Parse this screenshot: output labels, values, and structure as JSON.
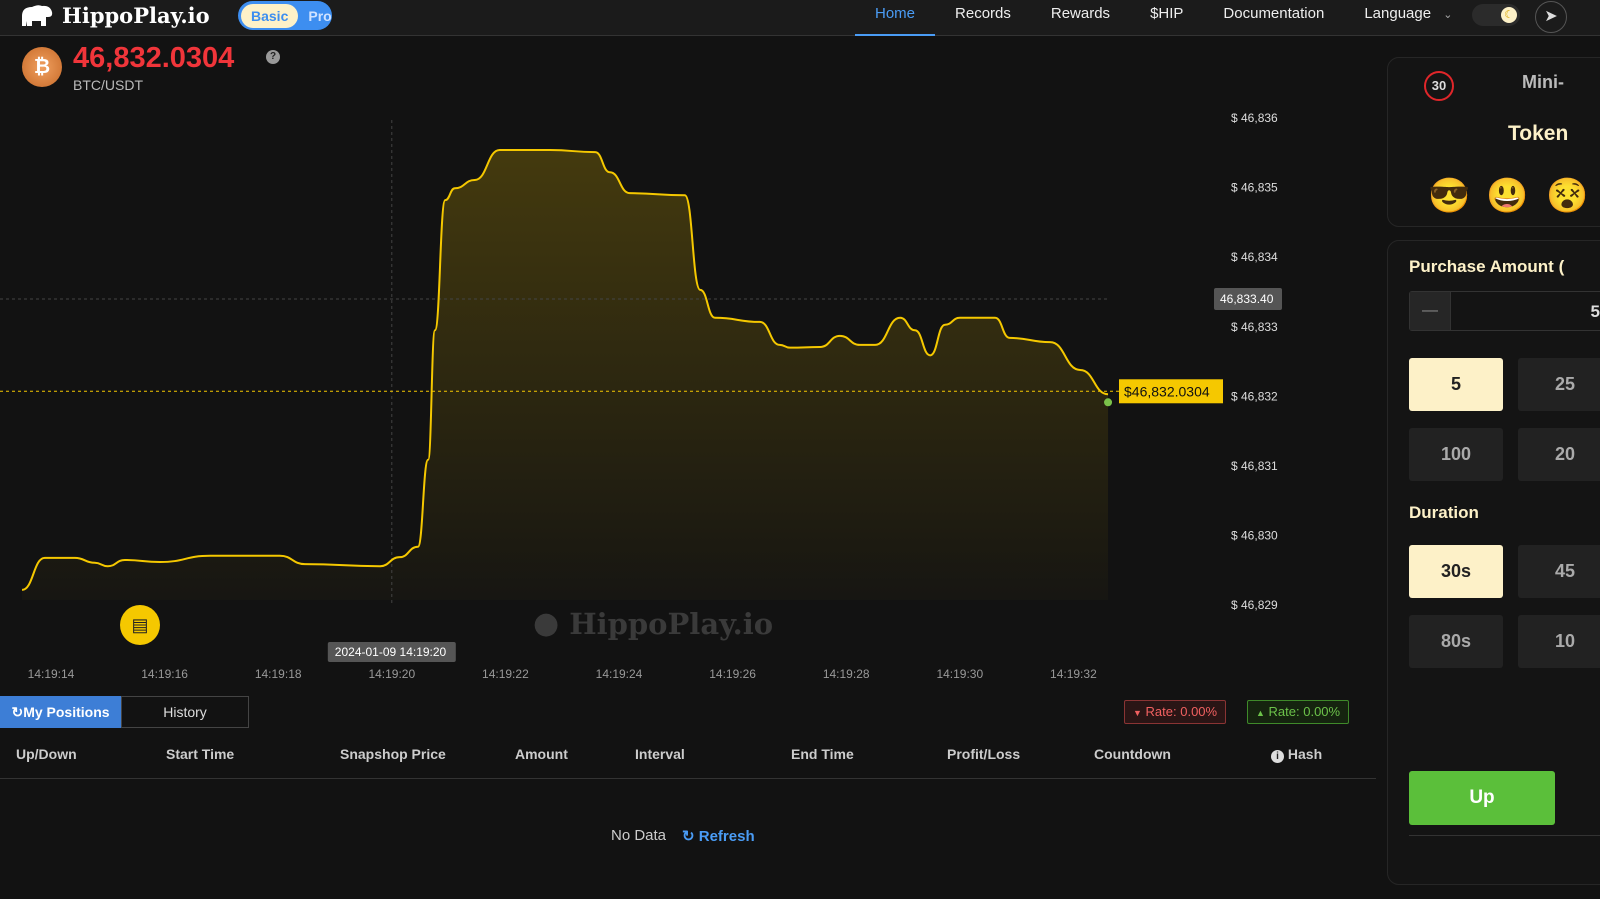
{
  "nav": {
    "brand": "HippoPlay.io",
    "plan_basic": "Basic",
    "plan_pro": "Pro",
    "items": [
      "Home",
      "Records",
      "Rewards",
      "$HIP",
      "Documentation",
      "Language"
    ],
    "active": "Home"
  },
  "ticker": {
    "price": "46,832.0304",
    "pair": "BTC/USDT",
    "price_color": "#f0353a"
  },
  "watermark": "HippoPlay.io",
  "chart_data": {
    "type": "area",
    "line_color": "#f5c800",
    "x_ticks": [
      "14:19:14",
      "14:19:16",
      "14:19:18",
      "14:19:20",
      "14:19:22",
      "14:19:24",
      "14:19:26",
      "14:19:28",
      "14:19:30",
      "14:19:32"
    ],
    "y_ticks": [
      "$ 46,836",
      "$ 46,835",
      "$ 46,834",
      "$ 46,833",
      "$ 46,832",
      "$ 46,831",
      "$ 46,830",
      "$ 46,829"
    ],
    "ylim": [
      46829,
      46836
    ],
    "points": [
      [
        "14:19:13.49",
        46829.22
      ],
      [
        "14:19:13.89",
        46829.68
      ],
      [
        "14:19:14.42",
        46829.68
      ],
      [
        "14:19:14.77",
        46829.61
      ],
      [
        "14:19:15.00",
        46829.56
      ],
      [
        "14:19:15.30",
        46829.65
      ],
      [
        "14:19:15.92",
        46829.62
      ],
      [
        "14:19:16.80",
        46829.71
      ],
      [
        "14:19:18.03",
        46829.71
      ],
      [
        "14:19:18.47",
        46829.59
      ],
      [
        "14:19:19.79",
        46829.56
      ],
      [
        "14:19:20.14",
        46829.69
      ],
      [
        "14:19:20.46",
        46829.84
      ],
      [
        "14:19:20.64",
        46831.09
      ],
      [
        "14:19:20.76",
        46832.95
      ],
      [
        "14:19:20.94",
        46834.82
      ],
      [
        "14:19:21.11",
        46834.99
      ],
      [
        "14:19:21.46",
        46835.11
      ],
      [
        "14:19:21.90",
        46835.54
      ],
      [
        "14:19:22.79",
        46835.54
      ],
      [
        "14:19:23.58",
        46835.51
      ],
      [
        "14:19:23.84",
        46835.22
      ],
      [
        "14:19:24.19",
        46834.92
      ],
      [
        "14:19:25.16",
        46834.89
      ],
      [
        "14:19:25.43",
        46833.53
      ],
      [
        "14:19:25.69",
        46833.13
      ],
      [
        "14:19:26.48",
        46833.07
      ],
      [
        "14:19:26.83",
        46832.74
      ],
      [
        "14:19:27.01",
        46832.7
      ],
      [
        "14:19:27.54",
        46832.71
      ],
      [
        "14:19:27.89",
        46832.87
      ],
      [
        "14:19:28.24",
        46832.74
      ],
      [
        "14:19:28.51",
        46832.74
      ],
      [
        "14:19:28.95",
        46833.13
      ],
      [
        "14:19:29.21",
        46832.95
      ],
      [
        "14:19:29.48",
        46832.59
      ],
      [
        "14:19:29.74",
        46833.03
      ],
      [
        "14:19:30.00",
        46833.13
      ],
      [
        "14:19:30.62",
        46833.13
      ],
      [
        "14:19:30.88",
        46832.84
      ],
      [
        "14:19:31.59",
        46832.78
      ],
      [
        "14:19:32.12",
        46832.38
      ],
      [
        "14:19:32.61",
        46832.0304
      ]
    ],
    "current_label": "$46,832.0304",
    "crosshair": {
      "time": "14:19:20",
      "price": 46833.4,
      "time_label": "2024-01-09 14:19:20",
      "price_label": "46,833.40"
    }
  },
  "positions": {
    "tabs": [
      "My Positions",
      "History"
    ],
    "rate_down": "Rate: 0.00%",
    "rate_up": "Rate: 0.00%",
    "columns": [
      "Up/Down",
      "Start Time",
      "Snapshop Price",
      "Amount",
      "Interval",
      "End Time",
      "Profit/Loss",
      "Countdown",
      "Hash"
    ],
    "empty": "No Data",
    "refresh": "Refresh"
  },
  "side": {
    "countdown": "30",
    "title": "Mini-",
    "subtitle": "Token",
    "purchase_title": "Purchase Amount (",
    "amount_value": "5",
    "amounts": [
      "5",
      "25",
      "100",
      "20"
    ],
    "duration_title": "Duration",
    "durations": [
      "30s",
      "45",
      "80s",
      "10"
    ],
    "up": "Up"
  }
}
